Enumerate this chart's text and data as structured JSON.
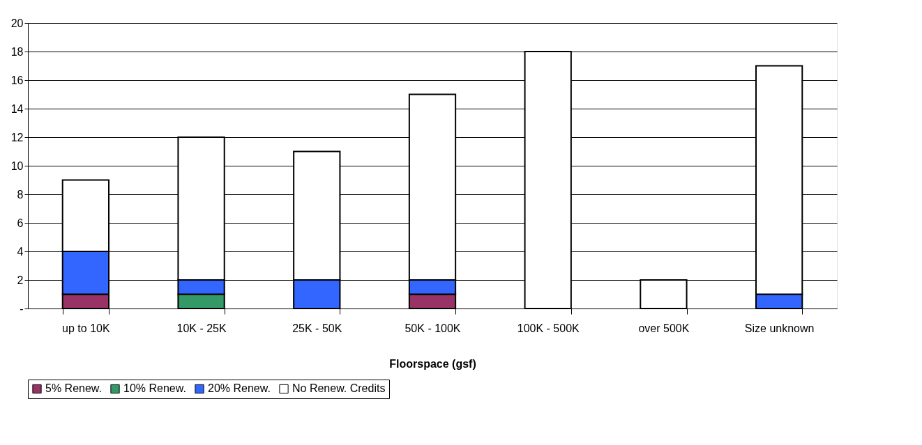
{
  "chart_data": {
    "type": "bar",
    "stacked": true,
    "xlabel": "Floorspace (gsf)",
    "categories": [
      "up to 10K",
      "10K - 25K",
      "25K - 50K",
      "50K - 100K",
      "100K - 500K",
      "over 500K",
      "Size unknown"
    ],
    "series": [
      {
        "name": "5% Renew.",
        "color": "#993366",
        "values": [
          1,
          0,
          0,
          1,
          0,
          0,
          0
        ]
      },
      {
        "name": "10% Renew.",
        "color": "#339966",
        "values": [
          0,
          1,
          0,
          0,
          0,
          0,
          0
        ]
      },
      {
        "name": "20% Renew.",
        "color": "#3366ff",
        "values": [
          3,
          1,
          2,
          1,
          0,
          0,
          1
        ]
      },
      {
        "name": "No Renew. Credits",
        "color": "#ffffff",
        "values": [
          5,
          10,
          9,
          13,
          18,
          2,
          16
        ]
      }
    ],
    "ylim": [
      0,
      20
    ],
    "yticks": [
      {
        "value": 0,
        "label": "-"
      },
      2,
      4,
      6,
      8,
      10,
      12,
      14,
      16,
      18,
      20
    ],
    "grid": "y",
    "legend": "bottom"
  }
}
